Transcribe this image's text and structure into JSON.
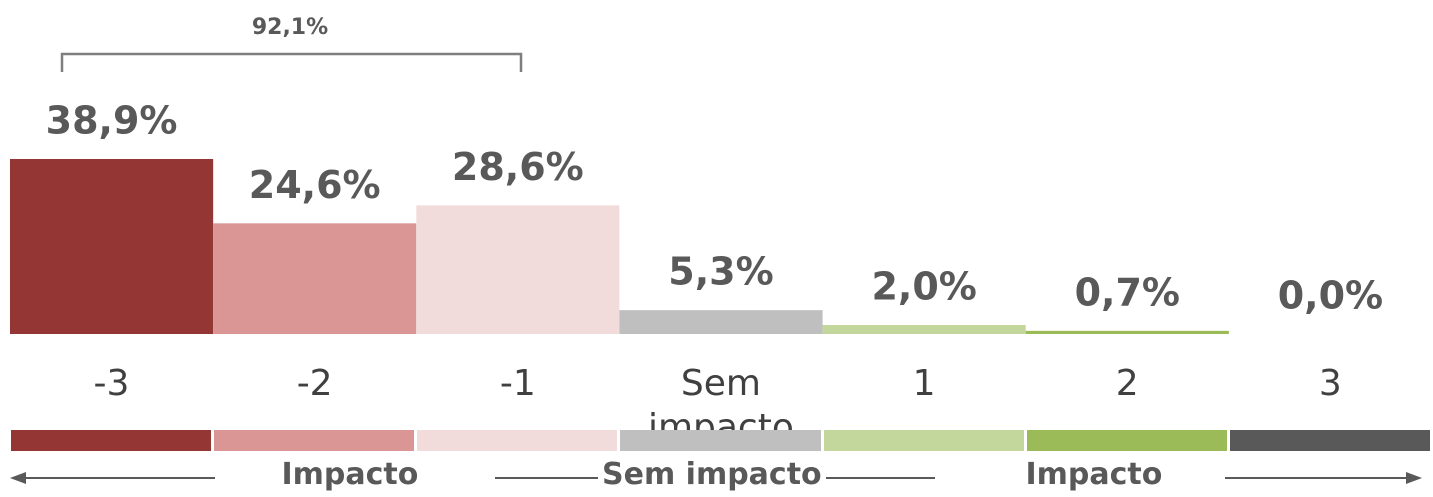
{
  "chart_data": {
    "type": "bar",
    "categories": [
      "-3",
      "-2",
      "-1",
      "Sem impacto",
      "1",
      "2",
      "3"
    ],
    "values": [
      38.9,
      24.6,
      28.6,
      5.3,
      2.0,
      0.7,
      0.0
    ],
    "value_labels": [
      "38,9%",
      "24,6%",
      "28,6%",
      "5,3%",
      "2,0%",
      "0,7%",
      "0,0%"
    ],
    "colors": [
      "#943634",
      "#d99694",
      "#f2dcdb",
      "#bfbfbf",
      "#c3d69b",
      "#9bbb59",
      "#595959"
    ],
    "ylim": [
      0,
      40
    ],
    "annotations": [
      {
        "text": "92,1%"
      }
    ],
    "scale_labels": [
      "Impacto",
      "Sem impacto",
      "Impacto"
    ]
  }
}
